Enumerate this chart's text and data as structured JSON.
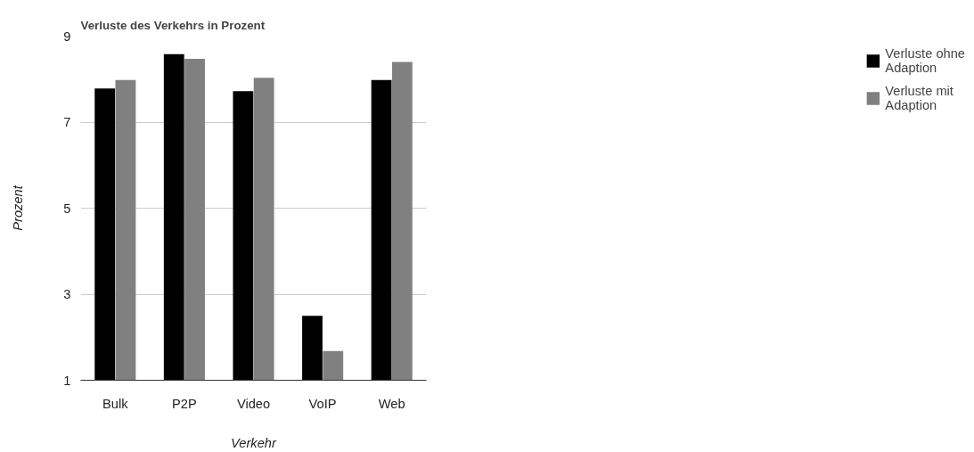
{
  "chart_data": {
    "type": "bar",
    "title": "Verluste des Verkehrs in Prozent",
    "xlabel": "Verkehr",
    "ylabel": "Prozent",
    "categories": [
      "Bulk",
      "P2P",
      "Video",
      "VoIP",
      "Web"
    ],
    "series": [
      {
        "name": "Verluste ohne Adaption",
        "color": "#000000",
        "values": [
          7.78,
          8.58,
          7.72,
          2.5,
          7.98
        ]
      },
      {
        "name": "Verluste mit Adaption",
        "color": "#808080",
        "values": [
          7.98,
          8.47,
          8.03,
          1.68,
          8.4
        ]
      }
    ],
    "ylim": [
      1,
      9
    ],
    "yticks": [
      1,
      3,
      5,
      7,
      9
    ],
    "grid": "y",
    "legend": "top right"
  }
}
